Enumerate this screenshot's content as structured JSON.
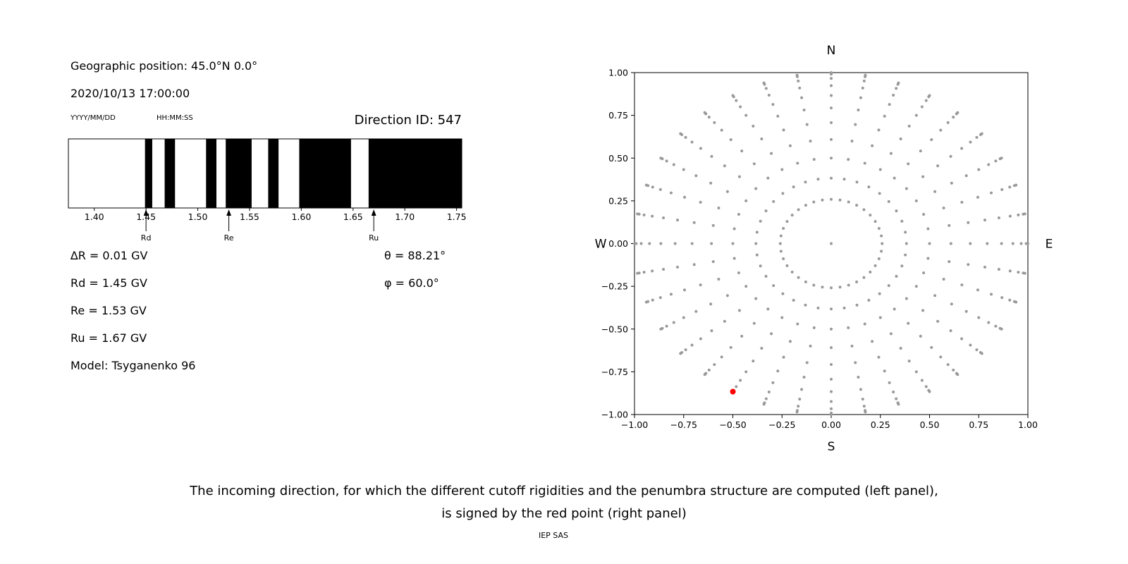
{
  "left_panel": {
    "geo_position": "Geographic position: 45.0°N 0.0°",
    "datetime": "2020/10/13 17:00:00",
    "date_format": "YYYY/MM/DD",
    "time_format": "HH:MM:SS",
    "direction_id": "Direction ID: 547",
    "delta_r": "∆R = 0.01 GV",
    "rd": "Rd = 1.45 GV",
    "re": "Re = 1.53 GV",
    "ru": "Ru = 1.67 GV",
    "model": "Model: Tsyganenko 96",
    "theta": "θ = 88.21°",
    "phi": "φ = 60.0°"
  },
  "caption": {
    "line1": "The incoming direction, for which the different cutoff rigidities and the penumbra structure are computed (left panel),",
    "line2": "is signed by the red point (right panel)",
    "credit": "IEP SAS"
  },
  "chart_data": [
    {
      "type": "bar",
      "title": "Direction ID: 547",
      "description": "Penumbra structure: black (forbidden/allowed) rigidity bands along a rigidity axis in GV",
      "xlim": [
        1.375,
        1.755
      ],
      "xticks": [
        "1.40",
        "1.45",
        "1.50",
        "1.55",
        "1.60",
        "1.65",
        "1.70",
        "1.75"
      ],
      "black_bands_gv": [
        [
          1.449,
          1.456
        ],
        [
          1.468,
          1.478
        ],
        [
          1.508,
          1.518
        ],
        [
          1.527,
          1.552
        ],
        [
          1.568,
          1.578
        ],
        [
          1.598,
          1.648
        ],
        [
          1.665,
          1.755
        ]
      ],
      "arrows": [
        {
          "label": "Rd",
          "gv": 1.45
        },
        {
          "label": "Re",
          "gv": 1.53
        },
        {
          "label": "Ru",
          "gv": 1.67
        }
      ],
      "band_color": "#000000"
    },
    {
      "type": "scatter",
      "description": "Grid of incoming directions: gray dots on 36 radial spokes (azimuth step 10°), dot radius = sin(zenith); red point marks the selected direction",
      "xlim": [
        -1,
        1
      ],
      "ylim": [
        -1,
        1
      ],
      "xticks": [
        -1,
        -0.75,
        -0.5,
        -0.25,
        0,
        0.25,
        0.5,
        0.75,
        1
      ],
      "yticks": [
        -1,
        -0.75,
        -0.5,
        -0.25,
        0,
        0.25,
        0.5,
        0.75,
        1
      ],
      "compass_labels": {
        "top": "N",
        "right": "E",
        "bottom": "S",
        "left": "W"
      },
      "gray_points": {
        "azimuth_step_deg": 10,
        "zenith_angles_deg": [
          15,
          22.5,
          30,
          37.5,
          45,
          52.5,
          60,
          67.5,
          75,
          82.5,
          90
        ],
        "radius_rule": "sin(zenith)",
        "color": "#999999"
      },
      "center_point": {
        "x": 0,
        "y": 0
      },
      "highlight_point": {
        "x": -0.5,
        "y": -0.866,
        "color": "#ff0000"
      }
    }
  ]
}
